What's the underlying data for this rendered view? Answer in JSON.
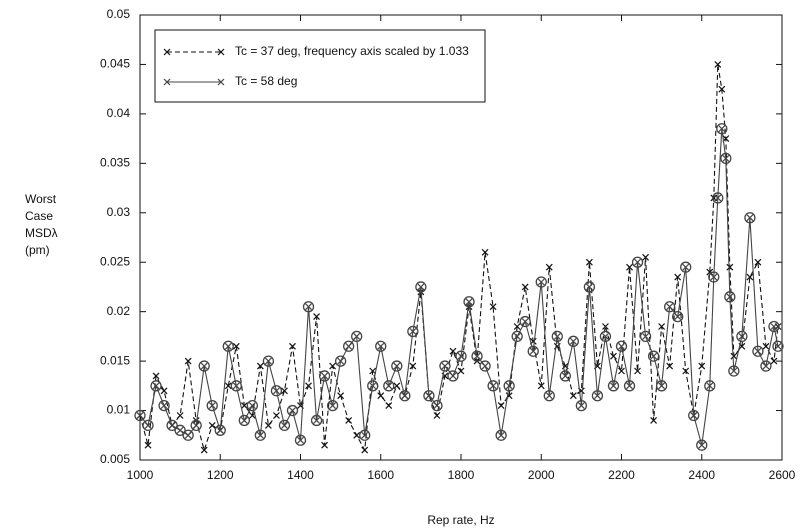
{
  "chart_data": {
    "type": "line",
    "xlabel": "Rep rate, Hz",
    "ylabel": [
      "Worst",
      "Case",
      "MSDλ",
      "(pm)"
    ],
    "x": [
      1000,
      1020,
      1040,
      1060,
      1080,
      1100,
      1120,
      1140,
      1160,
      1180,
      1200,
      1220,
      1240,
      1260,
      1280,
      1300,
      1320,
      1340,
      1360,
      1380,
      1400,
      1420,
      1440,
      1460,
      1480,
      1500,
      1520,
      1540,
      1560,
      1580,
      1600,
      1620,
      1640,
      1660,
      1680,
      1700,
      1720,
      1740,
      1760,
      1780,
      1800,
      1820,
      1840,
      1860,
      1880,
      1900,
      1920,
      1940,
      1960,
      1980,
      2000,
      2020,
      2040,
      2060,
      2080,
      2100,
      2120,
      2140,
      2160,
      2180,
      2200,
      2220,
      2240,
      2260,
      2280,
      2300,
      2320,
      2340,
      2360,
      2380,
      2400,
      2420,
      2430,
      2440,
      2450,
      2460,
      2470,
      2480,
      2500,
      2520,
      2540,
      2560,
      2580,
      2590
    ],
    "series": [
      {
        "name": "Tc = 37 deg, frequency axis scaled by 1.033",
        "color": "#111111",
        "linestyle": "dashed",
        "marker": "x",
        "values": [
          0.0095,
          0.0065,
          0.0135,
          0.012,
          0.0085,
          0.0095,
          0.015,
          0.009,
          0.006,
          0.0085,
          0.008,
          0.0125,
          0.0165,
          0.0105,
          0.0095,
          0.0145,
          0.0085,
          0.0095,
          0.012,
          0.0165,
          0.0105,
          0.0125,
          0.0195,
          0.0065,
          0.0145,
          0.0115,
          0.009,
          0.0075,
          0.006,
          0.014,
          0.0115,
          0.0105,
          0.0125,
          0.0115,
          0.0145,
          0.022,
          0.0115,
          0.0095,
          0.0135,
          0.016,
          0.014,
          0.0205,
          0.015,
          0.026,
          0.0205,
          0.0105,
          0.0115,
          0.0185,
          0.0225,
          0.017,
          0.0125,
          0.0245,
          0.0165,
          0.0145,
          0.0115,
          0.012,
          0.025,
          0.0145,
          0.0185,
          0.0155,
          0.014,
          0.0245,
          0.014,
          0.0255,
          0.009,
          0.0185,
          0.0145,
          0.0235,
          0.014,
          0.0095,
          0.0145,
          0.024,
          0.0315,
          0.045,
          0.0425,
          0.0375,
          0.0245,
          0.0155,
          0.0165,
          0.0235,
          0.025,
          0.0165,
          0.015,
          0.0185
        ]
      },
      {
        "name": "Tc = 58 deg",
        "color": "#444444",
        "linestyle": "solid",
        "marker": "x-circle",
        "values": [
          0.0095,
          0.0085,
          0.0125,
          0.0105,
          0.0085,
          0.008,
          0.0075,
          0.0085,
          0.0145,
          0.0105,
          0.008,
          0.0165,
          0.0125,
          0.009,
          0.0105,
          0.0075,
          0.015,
          0.012,
          0.0085,
          0.01,
          0.007,
          0.0205,
          0.009,
          0.0135,
          0.0105,
          0.015,
          0.0165,
          0.0175,
          0.0075,
          0.0125,
          0.0165,
          0.0125,
          0.0145,
          0.0115,
          0.018,
          0.0225,
          0.0115,
          0.0105,
          0.0145,
          0.0135,
          0.0155,
          0.021,
          0.0155,
          0.0145,
          0.0125,
          0.0075,
          0.0125,
          0.0175,
          0.019,
          0.016,
          0.023,
          0.0115,
          0.0175,
          0.0135,
          0.017,
          0.0105,
          0.0225,
          0.0115,
          0.0175,
          0.0125,
          0.0165,
          0.0125,
          0.025,
          0.0175,
          0.0155,
          0.0125,
          0.0205,
          0.0195,
          0.0245,
          0.0095,
          0.0065,
          0.0125,
          0.0235,
          0.0315,
          0.0385,
          0.0355,
          0.0215,
          0.014,
          0.0175,
          0.0295,
          0.016,
          0.0145,
          0.0185,
          0.0165
        ]
      }
    ],
    "xlim": [
      1000,
      2600
    ],
    "xticks": [
      1000,
      1200,
      1400,
      1600,
      1800,
      2000,
      2200,
      2400,
      2600
    ],
    "ylim": [
      0.005,
      0.05
    ],
    "yticks": [
      0.005,
      0.01,
      0.015,
      0.02,
      0.025,
      0.03,
      0.035,
      0.04,
      0.045,
      0.05
    ],
    "legend": "upper left"
  }
}
